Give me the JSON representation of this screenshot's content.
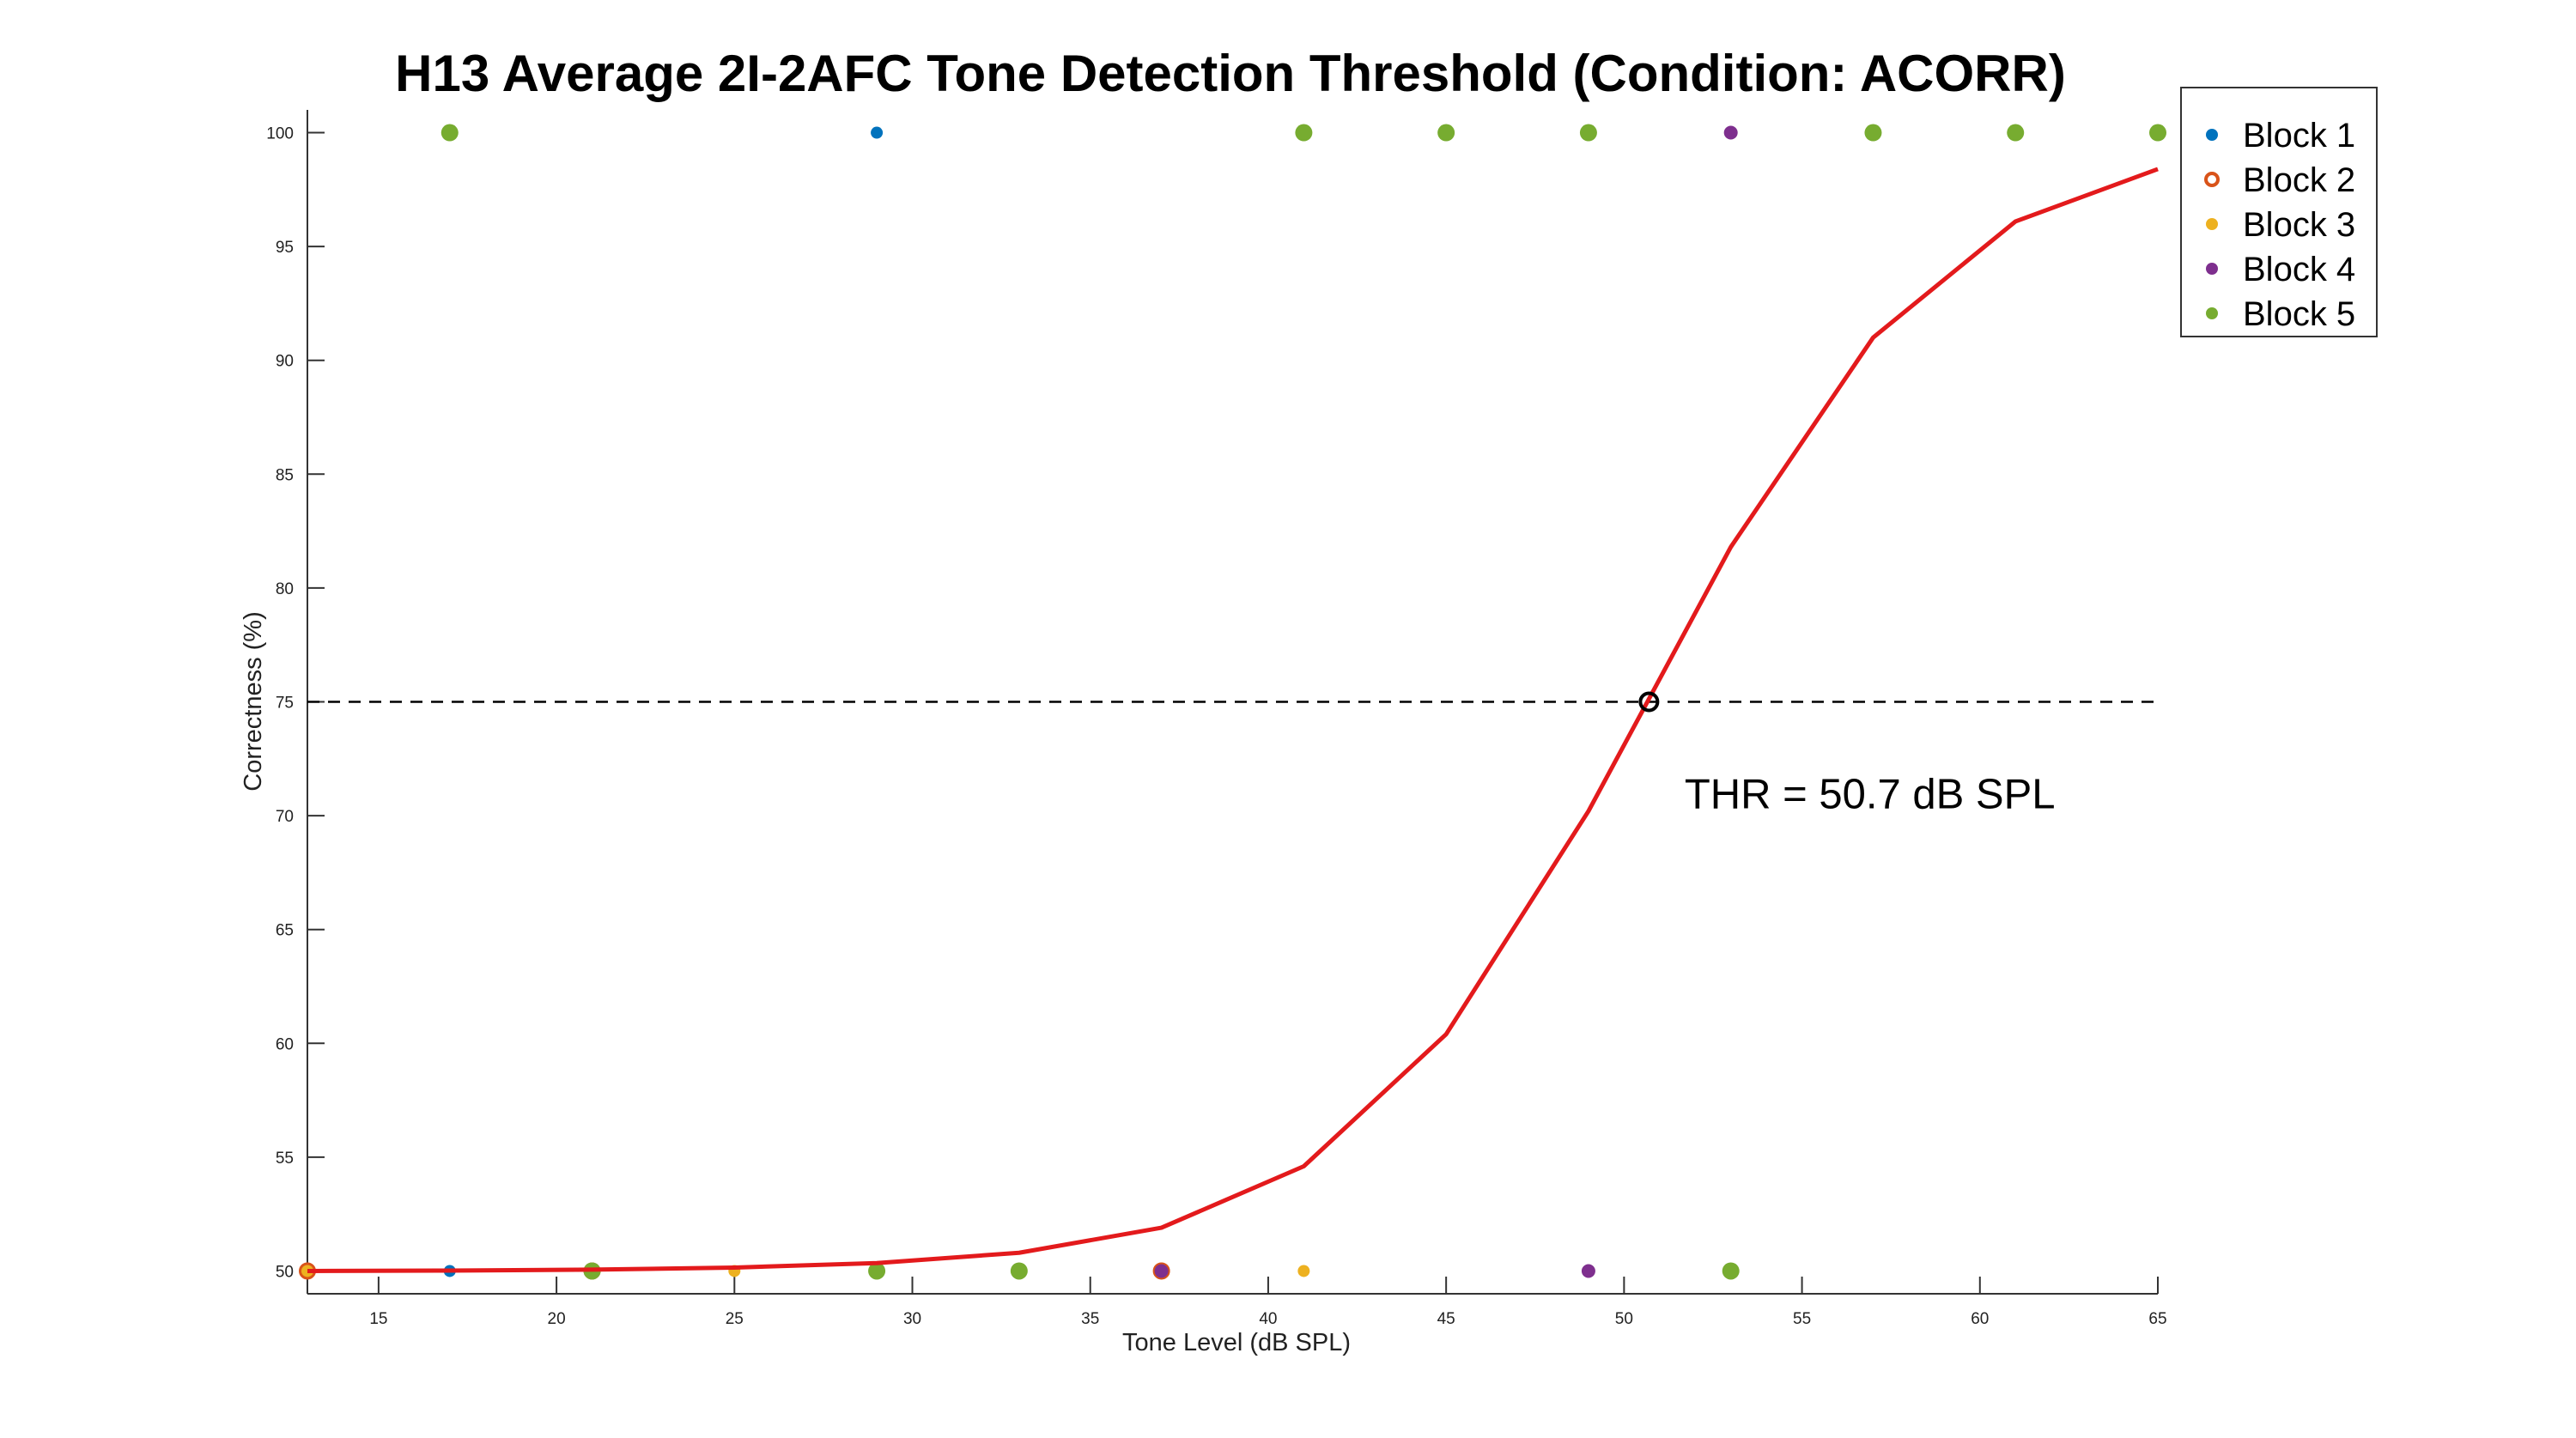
{
  "chart_data": {
    "type": "scatter",
    "title": "H13 Average 2I-2AFC Tone Detection Threshold (Condition: ACORR)",
    "xlabel": "Tone Level (dB SPL)",
    "ylabel": "Correctness (%)",
    "xlim": [
      13,
      65
    ],
    "ylim": [
      49,
      101
    ],
    "xticks": [
      15,
      20,
      25,
      30,
      35,
      40,
      45,
      50,
      55,
      60,
      65
    ],
    "yticks": [
      50,
      55,
      60,
      65,
      70,
      75,
      80,
      85,
      90,
      95,
      100
    ],
    "grid": false,
    "legend_position": "top-right",
    "series": [
      {
        "name": "Block 1",
        "color": "#0072BD",
        "points": [
          [
            13,
            50
          ],
          [
            17,
            50
          ],
          [
            29,
            100
          ]
        ]
      },
      {
        "name": "Block 2",
        "color": "#D95319",
        "points": [
          [
            13,
            50
          ],
          [
            21,
            50
          ],
          [
            37,
            50
          ]
        ]
      },
      {
        "name": "Block 3",
        "color": "#EDB120",
        "points": [
          [
            13,
            50
          ],
          [
            25,
            50
          ],
          [
            41,
            50
          ]
        ]
      },
      {
        "name": "Block 4",
        "color": "#7E2F8E",
        "points": [
          [
            37,
            50
          ],
          [
            49,
            50
          ],
          [
            53,
            100
          ]
        ]
      },
      {
        "name": "Block 5",
        "color": "#77AC30",
        "points": [
          [
            17,
            100
          ],
          [
            21,
            50
          ],
          [
            29,
            50
          ],
          [
            33,
            50
          ],
          [
            41,
            100
          ],
          [
            45,
            100
          ],
          [
            49,
            100
          ],
          [
            53,
            50
          ],
          [
            57,
            100
          ],
          [
            61,
            100
          ],
          [
            65,
            100
          ]
        ]
      }
    ],
    "fit_curve": {
      "color": "#E31A1C",
      "points": [
        [
          13,
          50
        ],
        [
          17,
          50.02
        ],
        [
          21,
          50.06
        ],
        [
          25,
          50.15
        ],
        [
          29,
          50.35
        ],
        [
          33,
          50.8
        ],
        [
          37,
          51.9
        ],
        [
          41,
          54.6
        ],
        [
          45,
          60.4
        ],
        [
          49,
          70.2
        ],
        [
          53,
          81.8
        ],
        [
          57,
          91
        ],
        [
          61,
          96.1
        ],
        [
          65,
          98.4
        ]
      ]
    },
    "reference_line": {
      "y": 75,
      "style": "dashed",
      "color": "#000000"
    },
    "threshold": {
      "x": 50.7,
      "y": 75
    },
    "annotation": {
      "text": "THR = 50.7 dB SPL",
      "x": 51.7,
      "y": 71
    }
  }
}
